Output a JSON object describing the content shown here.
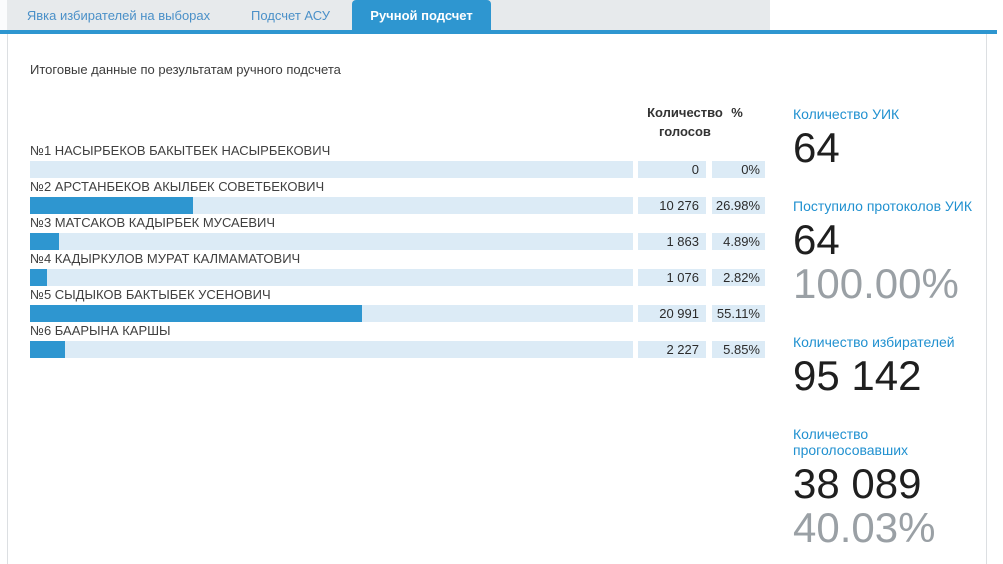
{
  "tabs": [
    {
      "label": "Явка избирателей на выборах",
      "active": false
    },
    {
      "label": "Подсчет АСУ",
      "active": false
    },
    {
      "label": "Ручной подсчет",
      "active": true
    }
  ],
  "title": "Итоговые данные по результатам ручного подсчета",
  "table": {
    "columns": {
      "votes": "Количество\nголосов",
      "percent": "%"
    },
    "candidates": [
      {
        "name": "№1 НАСЫРБЕКОВ БАКЫТБЕК НАСЫРБЕКОВИЧ",
        "votes": "0",
        "percent": "0%",
        "percent_value": 0
      },
      {
        "name": "№2 АРСТАНБЕКОВ АКЫЛБЕК СОВЕТБЕКОВИЧ",
        "votes": "10 276",
        "percent": "26.98%",
        "percent_value": 26.98
      },
      {
        "name": "№3 МАТСАКОВ КАДЫРБЕК МУСАЕВИЧ",
        "votes": "1 863",
        "percent": "4.89%",
        "percent_value": 4.89
      },
      {
        "name": "№4 КАДЫРКУЛОВ МУРАТ КАЛМАМАТОВИЧ",
        "votes": "1 076",
        "percent": "2.82%",
        "percent_value": 2.82
      },
      {
        "name": "№5 СЫДЫКОВ БАКТЫБЕК УСЕНОВИЧ",
        "votes": "20 991",
        "percent": "55.11%",
        "percent_value": 55.11
      },
      {
        "name": "№6 БААРЫНА КАРШЫ",
        "votes": "2 227",
        "percent": "5.85%",
        "percent_value": 5.85
      }
    ]
  },
  "stats": [
    {
      "label": "Количество УИК",
      "value": "64"
    },
    {
      "label": "Поступило протоколов УИК",
      "value": "64",
      "sub": "100.00%"
    },
    {
      "label": "Количество избирателей",
      "value": "95 142"
    },
    {
      "label": "Количество проголосовавших",
      "value": "38 089",
      "sub": "40.03%"
    }
  ],
  "colors": {
    "accent": "#2e96d0",
    "bar_track": "#dcebf6",
    "label_blue": "#2191d0",
    "sub_gray": "#9aa0a5",
    "tabbar_bg": "#e7eaec"
  }
}
